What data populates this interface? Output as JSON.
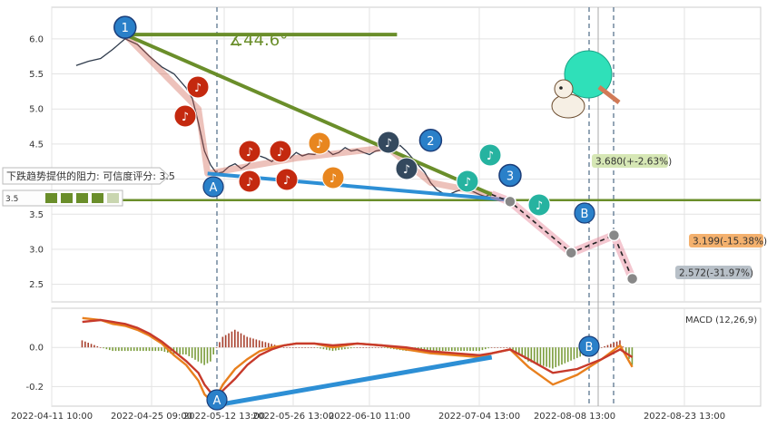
{
  "chart_data": [
    {
      "type": "line",
      "panel": "price",
      "x_tick_labels": [
        "2022-04-11 10:00",
        "2022-04-25 09:00",
        "2022-05-12 13:00",
        "2022-05-26 13:00",
        "2022-06-10 11:00",
        "2022-07-04 13:00",
        "2022-08-08 13:00",
        "2022-08-23 13:00"
      ],
      "y_tick_labels": [
        "2.5",
        "3.0",
        "3.5",
        "4.0",
        "4.5",
        "5.0",
        "5.5",
        "6.0"
      ],
      "ylim": [
        2.25,
        6.45
      ],
      "grid": true,
      "series": [
        {
          "values": [
            [
              4,
              5.62
            ],
            [
              6,
              5.68
            ],
            [
              8,
              5.72
            ],
            [
              10,
              5.85
            ],
            [
              12,
              6.0
            ],
            [
              14,
              5.92
            ],
            [
              16,
              5.75
            ],
            [
              18,
              5.6
            ],
            [
              20,
              5.5
            ],
            [
              22,
              5.3
            ],
            [
              23,
              5.15
            ],
            [
              24,
              4.8
            ],
            [
              25,
              4.4
            ],
            [
              26,
              4.2
            ],
            [
              27,
              4.08
            ],
            [
              28,
              4.1
            ],
            [
              29,
              4.18
            ],
            [
              30,
              4.22
            ],
            [
              31,
              4.15
            ],
            [
              32,
              4.2
            ],
            [
              33,
              4.28
            ],
            [
              34,
              4.33
            ],
            [
              35,
              4.3
            ],
            [
              36,
              4.25
            ],
            [
              37,
              4.32
            ],
            [
              38,
              4.35
            ],
            [
              39,
              4.3
            ],
            [
              40,
              4.38
            ],
            [
              41,
              4.33
            ],
            [
              42,
              4.36
            ],
            [
              43,
              4.35
            ],
            [
              44,
              4.4
            ],
            [
              45,
              4.42
            ],
            [
              46,
              4.35
            ],
            [
              47,
              4.38
            ],
            [
              48,
              4.45
            ],
            [
              49,
              4.4
            ],
            [
              50,
              4.42
            ],
            [
              51,
              4.38
            ],
            [
              52,
              4.35
            ],
            [
              53,
              4.4
            ],
            [
              54,
              4.42
            ],
            [
              55,
              4.45
            ],
            [
              56,
              4.43
            ],
            [
              57,
              4.48
            ],
            [
              58,
              4.4
            ],
            [
              59,
              4.3
            ],
            [
              60,
              4.2
            ],
            [
              61,
              4.1
            ],
            [
              62,
              3.95
            ],
            [
              63,
              3.85
            ],
            [
              64,
              3.8
            ],
            [
              65,
              3.78
            ],
            [
              66,
              3.82
            ],
            [
              67,
              3.85
            ],
            [
              68,
              3.84
            ],
            [
              69,
              3.82
            ],
            [
              70,
              3.78
            ],
            [
              71,
              3.75
            ],
            [
              72,
              3.8
            ]
          ]
        }
      ],
      "trendlines": [
        {
          "x": [
            12,
            56.5
          ],
          "y": [
            6.06,
            6.06
          ]
        },
        {
          "x": [
            12,
            72
          ],
          "y": [
            6.06,
            3.78
          ]
        },
        {
          "x": [
            5,
            116
          ],
          "y": [
            3.7,
            3.7
          ]
        },
        {
          "x": [
            25.5,
            75
          ],
          "y": [
            4.08,
            3.7
          ]
        }
      ],
      "forecast": {
        "x": [
          72,
          75,
          85,
          92,
          95
        ],
        "y": [
          3.78,
          3.68,
          2.95,
          3.2,
          2.58
        ]
      },
      "annotations": {
        "angle_label": "∡44.6°",
        "resistance_label": "下跌趋势提供的阻力: 可信度评分: 3.5",
        "resistance_score": "3.5",
        "price_labels": [
          "3.680(+-2.63%)",
          "3.199(-15.38%)",
          "2.572(-31.97%)"
        ],
        "pivot_labels": [
          "1",
          "2",
          "3"
        ],
        "point_labels": [
          "A",
          "B"
        ]
      }
    },
    {
      "type": "line",
      "panel": "macd",
      "title": "MACD (12,26,9)",
      "y_tick_labels": [
        "0.0",
        "-0.2"
      ],
      "ylim": [
        -0.3,
        0.2
      ],
      "grid": true,
      "series": [
        {
          "color": "#e8801e",
          "values": [
            [
              5,
              0.15
            ],
            [
              8,
              0.14
            ],
            [
              10,
              0.12
            ],
            [
              12,
              0.11
            ],
            [
              14,
              0.09
            ],
            [
              16,
              0.06
            ],
            [
              18,
              0.02
            ],
            [
              20,
              -0.04
            ],
            [
              22,
              -0.09
            ],
            [
              24,
              -0.17
            ],
            [
              25,
              -0.24
            ],
            [
              26,
              -0.27
            ],
            [
              27,
              -0.25
            ],
            [
              28,
              -0.19
            ],
            [
              30,
              -0.11
            ],
            [
              32,
              -0.06
            ],
            [
              34,
              -0.02
            ],
            [
              36,
              0.0
            ],
            [
              38,
              0.01
            ],
            [
              40,
              0.02
            ],
            [
              43,
              0.02
            ],
            [
              46,
              0.0
            ],
            [
              50,
              0.02
            ],
            [
              54,
              0.01
            ],
            [
              58,
              -0.01
            ],
            [
              62,
              -0.03
            ],
            [
              66,
              -0.04
            ],
            [
              70,
              -0.05
            ],
            [
              72,
              -0.03
            ],
            [
              75,
              -0.01
            ],
            [
              78,
              -0.1
            ],
            [
              82,
              -0.19
            ],
            [
              86,
              -0.14
            ],
            [
              90,
              -0.06
            ],
            [
              93,
              0.01
            ],
            [
              95,
              -0.1
            ]
          ]
        },
        {
          "color": "#c73a2b",
          "values": [
            [
              5,
              0.13
            ],
            [
              8,
              0.14
            ],
            [
              10,
              0.13
            ],
            [
              12,
              0.12
            ],
            [
              14,
              0.1
            ],
            [
              16,
              0.07
            ],
            [
              18,
              0.03
            ],
            [
              20,
              -0.02
            ],
            [
              22,
              -0.07
            ],
            [
              24,
              -0.13
            ],
            [
              25,
              -0.19
            ],
            [
              26,
              -0.23
            ],
            [
              27,
              -0.25
            ],
            [
              28,
              -0.22
            ],
            [
              30,
              -0.16
            ],
            [
              32,
              -0.09
            ],
            [
              34,
              -0.04
            ],
            [
              36,
              -0.01
            ],
            [
              38,
              0.01
            ],
            [
              40,
              0.02
            ],
            [
              43,
              0.02
            ],
            [
              46,
              0.01
            ],
            [
              50,
              0.02
            ],
            [
              54,
              0.01
            ],
            [
              58,
              0.0
            ],
            [
              62,
              -0.02
            ],
            [
              66,
              -0.03
            ],
            [
              70,
              -0.04
            ],
            [
              72,
              -0.03
            ],
            [
              75,
              -0.01
            ],
            [
              78,
              -0.06
            ],
            [
              82,
              -0.13
            ],
            [
              86,
              -0.11
            ],
            [
              90,
              -0.06
            ],
            [
              93,
              -0.01
            ],
            [
              95,
              -0.05
            ]
          ]
        }
      ],
      "trendlines": [
        {
          "x": [
            26,
            72
          ],
          "y": [
            -0.3,
            -0.05
          ]
        }
      ],
      "point_labels": [
        "A",
        "B"
      ]
    }
  ]
}
